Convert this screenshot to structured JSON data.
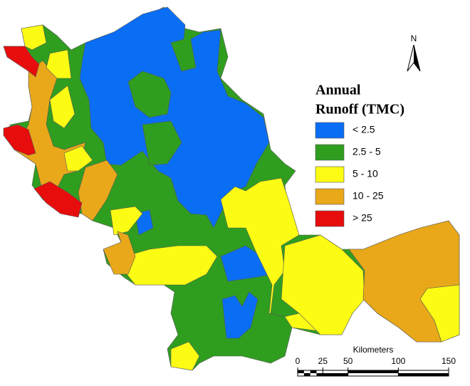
{
  "legend": {
    "title_lines": [
      "Annual",
      "Runoff (TMC)"
    ],
    "classes": [
      {
        "label": "< 2.5",
        "color": "#0a6ef5"
      },
      {
        "label": "2.5 - 5",
        "color": "#2f9e1f"
      },
      {
        "label": "5 - 10",
        "color": "#fbfb14"
      },
      {
        "label": "10 - 25",
        "color": "#e8a81a"
      },
      {
        "label": "> 25",
        "color": "#e80d0d"
      }
    ]
  },
  "north_arrow": "N",
  "scale_bar": {
    "unit": "Kilometers",
    "ticks": [
      0,
      25,
      50,
      100,
      150
    ]
  }
}
